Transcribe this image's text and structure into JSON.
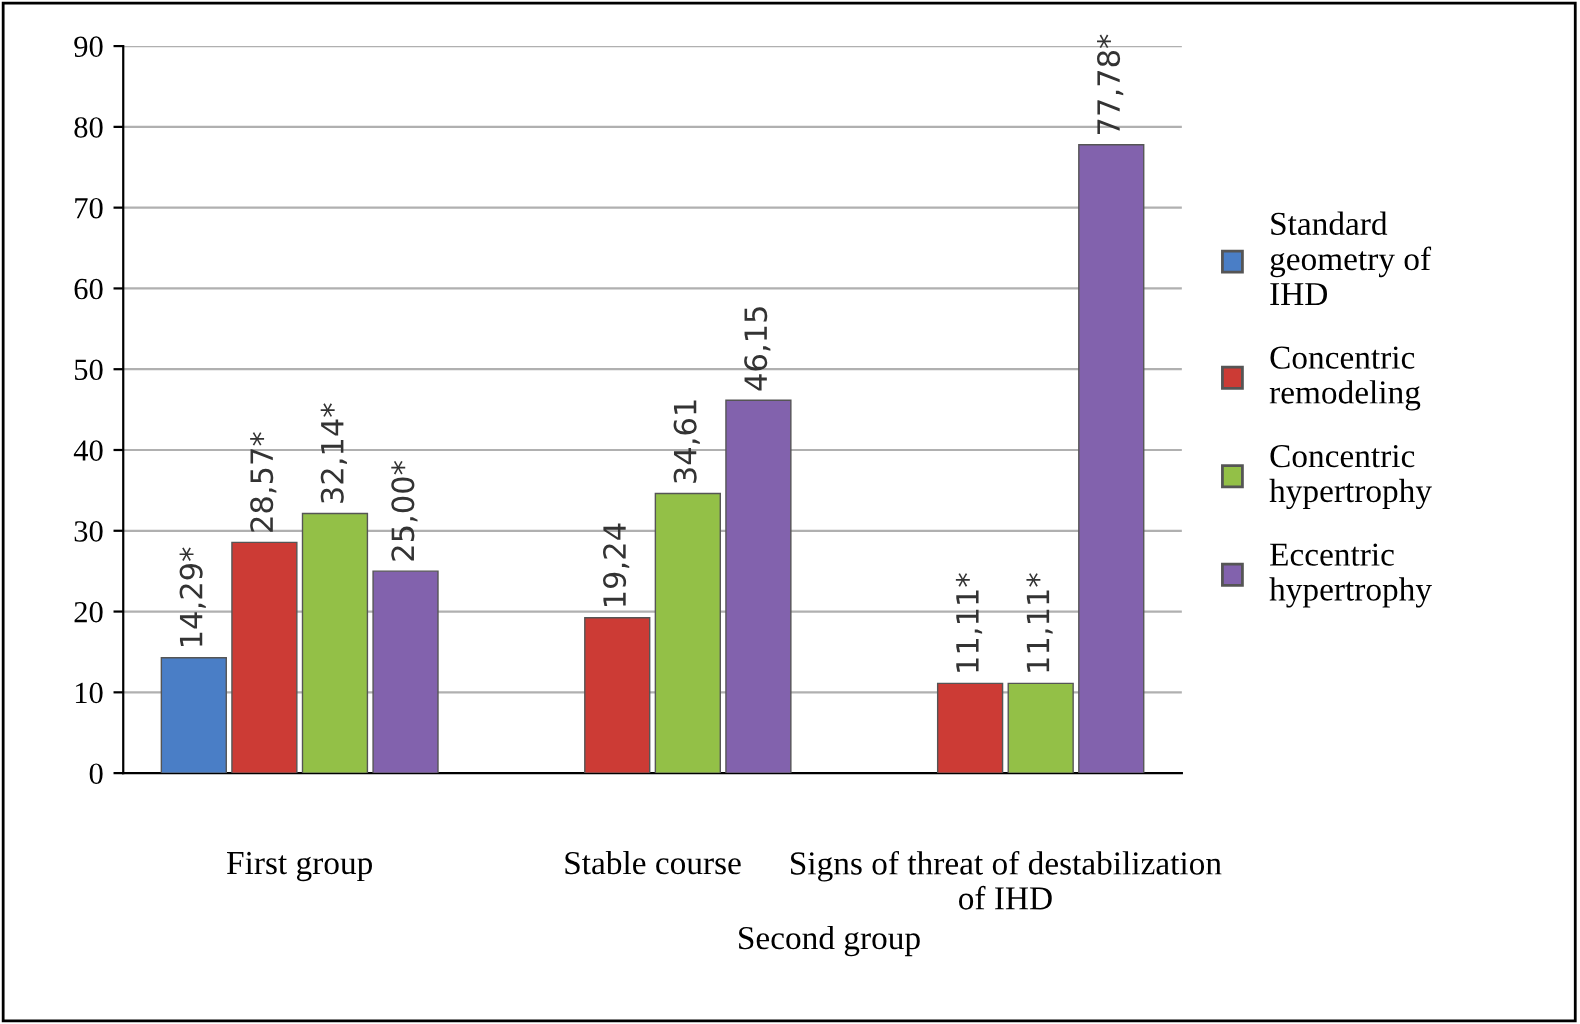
{
  "chart_data": {
    "type": "bar",
    "categories": [
      "First group",
      "Stable course",
      "Signs of threat of destabilization of IHD"
    ],
    "annotations": [
      "Second group"
    ],
    "series": [
      {
        "name": "Standard geometry of IHD",
        "color": "#4a7ec6",
        "values": [
          14.29,
          null,
          null
        ],
        "value_labels": [
          "14,29*",
          null,
          null
        ]
      },
      {
        "name": "Concentric remodeling",
        "color": "#cc3b35",
        "values": [
          28.57,
          19.24,
          11.11
        ],
        "value_labels": [
          "28,57*",
          "19,24",
          "11,11*"
        ]
      },
      {
        "name": "Concentric hypertrophy",
        "color": "#93c047",
        "values": [
          32.14,
          34.61,
          11.11
        ],
        "value_labels": [
          "32,14*",
          "34,61",
          "11,11*"
        ]
      },
      {
        "name": "Eccentric hypertrophy",
        "color": "#8262ad",
        "values": [
          25.0,
          46.15,
          77.78
        ],
        "value_labels": [
          "25,00*",
          "46,15",
          "77,78*"
        ]
      }
    ],
    "ylim": [
      0,
      90
    ],
    "yticks": [
      0,
      10,
      20,
      30,
      40,
      50,
      60,
      70,
      80,
      90
    ],
    "grid": "y",
    "legend": "right"
  }
}
